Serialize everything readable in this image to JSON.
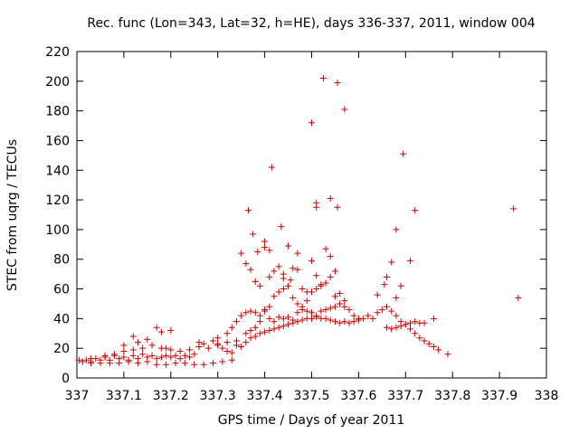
{
  "chart_data": {
    "type": "scatter",
    "title": "Rec. func (Lon=343, Lat=32, h=HE), days 336-337, 2011, window 004",
    "xlabel": "GPS time / Days of year 2011",
    "ylabel": "STEC from uqrg / TECUs",
    "xlim": [
      337,
      338
    ],
    "ylim": [
      0,
      220
    ],
    "x_ticks": [
      "337",
      "337.1",
      "337.2",
      "337.3",
      "337.4",
      "337.5",
      "337.6",
      "337.7",
      "337.8",
      "337.9",
      "338"
    ],
    "y_ticks": [
      "0",
      "20",
      "40",
      "60",
      "80",
      "100",
      "120",
      "140",
      "160",
      "180",
      "200",
      "220"
    ],
    "grid": false,
    "marker": "plus",
    "color": "#cc0000",
    "series": [
      {
        "points": [
          [
            337.005,
            12
          ],
          [
            337.012,
            11
          ],
          [
            337.02,
            12
          ],
          [
            337.03,
            11
          ],
          [
            337.04,
            13
          ],
          [
            337.05,
            12
          ],
          [
            337.06,
            14
          ],
          [
            337.07,
            12
          ],
          [
            337.08,
            15
          ],
          [
            337.09,
            13
          ],
          [
            337.1,
            14
          ],
          [
            337.11,
            12
          ],
          [
            337.12,
            15
          ],
          [
            337.13,
            13
          ],
          [
            337.14,
            16
          ],
          [
            337.15,
            14
          ],
          [
            337.16,
            15
          ],
          [
            337.17,
            13
          ],
          [
            337.18,
            14
          ],
          [
            337.19,
            15
          ],
          [
            337.2,
            14
          ],
          [
            337.21,
            15
          ],
          [
            337.22,
            13
          ],
          [
            337.23,
            15
          ],
          [
            337.24,
            14
          ],
          [
            337.25,
            16
          ],
          [
            337.03,
            10
          ],
          [
            337.05,
            10
          ],
          [
            337.07,
            10
          ],
          [
            337.09,
            10
          ],
          [
            337.11,
            11
          ],
          [
            337.13,
            10
          ],
          [
            337.15,
            11
          ],
          [
            337.17,
            9
          ],
          [
            337.19,
            9
          ],
          [
            337.21,
            10
          ],
          [
            337.23,
            10
          ],
          [
            337.25,
            9
          ],
          [
            337.27,
            9
          ],
          [
            337.29,
            10
          ],
          [
            337.31,
            11
          ],
          [
            337.33,
            12
          ],
          [
            337.03,
            13
          ],
          [
            337.06,
            15
          ],
          [
            337.08,
            16
          ],
          [
            337.1,
            18
          ],
          [
            337.12,
            19
          ],
          [
            337.14,
            20
          ],
          [
            337.16,
            22
          ],
          [
            337.18,
            20
          ],
          [
            337.2,
            19
          ],
          [
            337.22,
            18
          ],
          [
            337.24,
            19
          ],
          [
            337.26,
            21
          ],
          [
            337.28,
            20
          ],
          [
            337.3,
            22
          ],
          [
            337.32,
            24
          ],
          [
            337.34,
            25
          ],
          [
            337.1,
            22
          ],
          [
            337.12,
            28
          ],
          [
            337.13,
            24
          ],
          [
            337.15,
            26
          ],
          [
            337.17,
            34
          ],
          [
            337.18,
            31
          ],
          [
            337.19,
            20
          ],
          [
            337.2,
            32
          ],
          [
            337.26,
            24
          ],
          [
            337.27,
            23
          ],
          [
            337.29,
            25
          ],
          [
            337.3,
            23
          ],
          [
            337.31,
            20
          ],
          [
            337.32,
            18
          ],
          [
            337.33,
            17
          ],
          [
            337.34,
            22
          ],
          [
            337.35,
            21
          ],
          [
            337.36,
            24
          ],
          [
            337.37,
            27
          ],
          [
            337.38,
            28
          ],
          [
            337.39,
            30
          ],
          [
            337.4,
            31
          ],
          [
            337.41,
            32
          ],
          [
            337.42,
            33
          ],
          [
            337.43,
            34
          ],
          [
            337.44,
            35
          ],
          [
            337.45,
            36
          ],
          [
            337.46,
            37
          ],
          [
            337.47,
            38
          ],
          [
            337.48,
            39
          ],
          [
            337.49,
            40
          ],
          [
            337.5,
            40
          ],
          [
            337.51,
            41
          ],
          [
            337.52,
            40
          ],
          [
            337.53,
            40
          ],
          [
            337.54,
            39
          ],
          [
            337.55,
            38
          ],
          [
            337.56,
            37
          ],
          [
            337.57,
            38
          ],
          [
            337.58,
            37
          ],
          [
            337.59,
            38
          ],
          [
            337.6,
            39
          ],
          [
            337.61,
            40
          ],
          [
            337.3,
            27
          ],
          [
            337.32,
            30
          ],
          [
            337.33,
            34
          ],
          [
            337.34,
            38
          ],
          [
            337.35,
            42
          ],
          [
            337.36,
            44
          ],
          [
            337.37,
            45
          ],
          [
            337.38,
            44
          ],
          [
            337.39,
            42
          ],
          [
            337.4,
            46
          ],
          [
            337.41,
            40
          ],
          [
            337.42,
            38
          ],
          [
            337.43,
            41
          ],
          [
            337.44,
            40
          ],
          [
            337.45,
            41
          ],
          [
            337.46,
            39
          ],
          [
            337.47,
            44
          ],
          [
            337.48,
            46
          ],
          [
            337.49,
            45
          ],
          [
            337.5,
            44
          ],
          [
            337.51,
            42
          ],
          [
            337.52,
            45
          ],
          [
            337.53,
            46
          ],
          [
            337.54,
            47
          ],
          [
            337.55,
            48
          ],
          [
            337.56,
            50
          ],
          [
            337.57,
            52
          ],
          [
            337.58,
            46
          ],
          [
            337.59,
            42
          ],
          [
            337.6,
            40
          ],
          [
            337.36,
            30
          ],
          [
            337.37,
            32
          ],
          [
            337.38,
            34
          ],
          [
            337.39,
            38
          ],
          [
            337.4,
            45
          ],
          [
            337.41,
            48
          ],
          [
            337.42,
            55
          ],
          [
            337.43,
            58
          ],
          [
            337.44,
            60
          ],
          [
            337.45,
            62
          ],
          [
            337.46,
            54
          ],
          [
            337.47,
            50
          ],
          [
            337.48,
            48
          ],
          [
            337.49,
            52
          ],
          [
            337.5,
            58
          ],
          [
            337.51,
            60
          ],
          [
            337.52,
            62
          ],
          [
            337.53,
            64
          ],
          [
            337.54,
            68
          ],
          [
            337.55,
            55
          ],
          [
            337.56,
            50
          ],
          [
            337.57,
            48
          ],
          [
            337.35,
            84
          ],
          [
            337.36,
            77
          ],
          [
            337.37,
            73
          ],
          [
            337.38,
            65
          ],
          [
            337.39,
            62
          ],
          [
            337.4,
            88
          ],
          [
            337.41,
            68
          ],
          [
            337.42,
            72
          ],
          [
            337.43,
            75
          ],
          [
            337.44,
            67
          ],
          [
            337.45,
            89
          ],
          [
            337.46,
            74
          ],
          [
            337.47,
            73
          ],
          [
            337.48,
            60
          ],
          [
            337.49,
            58
          ],
          [
            337.5,
            79
          ],
          [
            337.51,
            69
          ],
          [
            337.52,
            63
          ],
          [
            337.53,
            87
          ],
          [
            337.54,
            82
          ],
          [
            337.55,
            72
          ],
          [
            337.56,
            57
          ],
          [
            337.365,
            113
          ],
          [
            337.375,
            97
          ],
          [
            337.385,
            85
          ],
          [
            337.4,
            92
          ],
          [
            337.41,
            86
          ],
          [
            337.415,
            142
          ],
          [
            337.435,
            102
          ],
          [
            337.44,
            70
          ],
          [
            337.455,
            66
          ],
          [
            337.47,
            84
          ],
          [
            337.5,
            172
          ],
          [
            337.51,
            118
          ],
          [
            337.51,
            115
          ],
          [
            337.525,
            202
          ],
          [
            337.54,
            121
          ],
          [
            337.555,
            199
          ],
          [
            337.555,
            115
          ],
          [
            337.57,
            181
          ],
          [
            337.62,
            42
          ],
          [
            337.63,
            40
          ],
          [
            337.64,
            44
          ],
          [
            337.65,
            46
          ],
          [
            337.66,
            48
          ],
          [
            337.67,
            45
          ],
          [
            337.68,
            42
          ],
          [
            337.69,
            38
          ],
          [
            337.7,
            36
          ],
          [
            337.71,
            33
          ],
          [
            337.72,
            30
          ],
          [
            337.73,
            27
          ],
          [
            337.74,
            25
          ],
          [
            337.75,
            23
          ],
          [
            337.76,
            21
          ],
          [
            337.77,
            19
          ],
          [
            337.79,
            16
          ],
          [
            337.64,
            56
          ],
          [
            337.655,
            63
          ],
          [
            337.66,
            68
          ],
          [
            337.67,
            78
          ],
          [
            337.68,
            54
          ],
          [
            337.68,
            100
          ],
          [
            337.69,
            62
          ],
          [
            337.695,
            151
          ],
          [
            337.71,
            79
          ],
          [
            337.72,
            113
          ],
          [
            337.66,
            34
          ],
          [
            337.67,
            33
          ],
          [
            337.68,
            34
          ],
          [
            337.69,
            35
          ],
          [
            337.7,
            36
          ],
          [
            337.71,
            37
          ],
          [
            337.72,
            38
          ],
          [
            337.73,
            37
          ],
          [
            337.74,
            37
          ],
          [
            337.76,
            40
          ],
          [
            337.93,
            114
          ],
          [
            337.94,
            54
          ]
        ]
      }
    ]
  }
}
